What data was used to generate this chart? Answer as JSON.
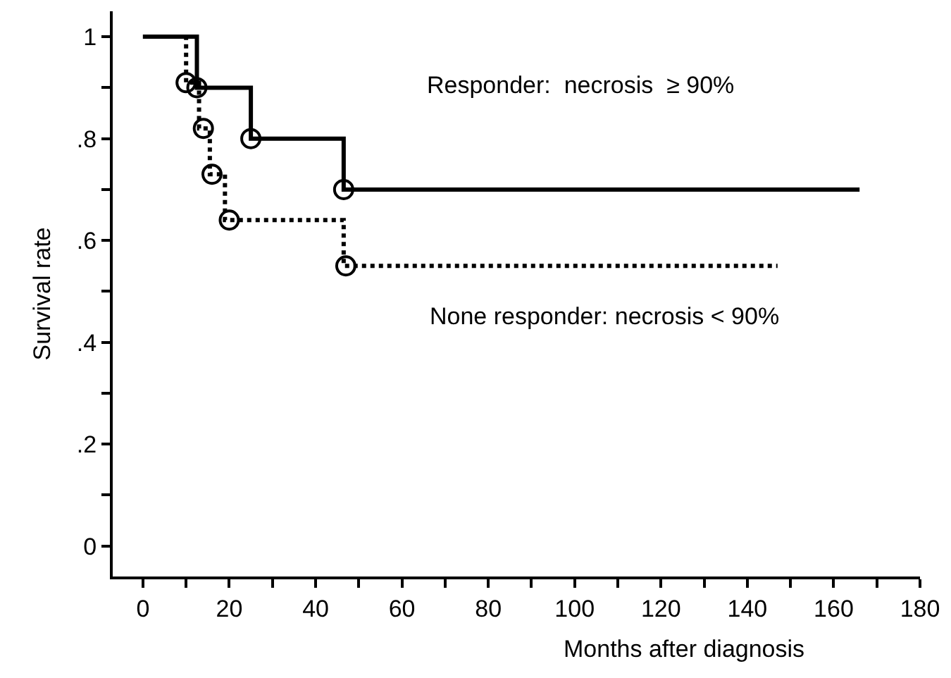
{
  "chart_data": {
    "type": "step",
    "xlabel": "Months after diagnosis",
    "ylabel": "Survival rate",
    "series": [
      {
        "color": "#000000",
        "line_style": "solid",
        "marker": "none",
        "x": [
          0,
          12.5,
          25,
          46.5,
          166
        ],
        "values": [
          1,
          0.9,
          0.8,
          0.7,
          0.7
        ]
      },
      {
        "color": "#000000",
        "line_style": "dotted",
        "marker": "none",
        "x": [
          0,
          10,
          13,
          15.5,
          19,
          46.5,
          147
        ],
        "values": [
          1,
          0.91,
          0.82,
          0.73,
          0.64,
          0.55,
          0.55
        ]
      },
      {
        "type": "scatter",
        "color": "#000000",
        "marker": "circle",
        "x": [
          12.5,
          25,
          46.5
        ],
        "values": [
          0.9,
          0.8,
          0.7
        ]
      },
      {
        "type": "scatter",
        "color": "#000000",
        "marker": "circle",
        "x": [
          10,
          14,
          16,
          20,
          47
        ],
        "values": [
          0.91,
          0.82,
          0.73,
          0.64,
          0.55
        ]
      }
    ],
    "annotations": [
      "Responder:  necrosis  ≥ 90%",
      "None responder: necrosis < 90%"
    ],
    "xlim": [
      -7,
      180
    ],
    "ylim": [
      -0.06,
      1.05
    ],
    "xticks": [
      0,
      {
        "value": 10,
        "label": null
      },
      20,
      {
        "value": 30,
        "label": null
      },
      40,
      {
        "value": 50,
        "label": null
      },
      60,
      {
        "value": 70,
        "label": null
      },
      80,
      {
        "value": 90,
        "label": null
      },
      100,
      {
        "value": 110,
        "label": null
      },
      120,
      {
        "value": 130,
        "label": null
      },
      140,
      {
        "value": 150,
        "label": null
      },
      160,
      {
        "value": 170,
        "label": null
      },
      180
    ],
    "yticks": [
      {
        "value": 0,
        "label": "0"
      },
      {
        "value": 0.1,
        "label": null
      },
      {
        "value": 0.2,
        "label": ".2"
      },
      {
        "value": 0.3,
        "label": null
      },
      {
        "value": 0.4,
        "label": ".4"
      },
      {
        "value": 0.5,
        "label": null
      },
      {
        "value": 0.6,
        "label": ".6"
      },
      {
        "value": 0.7,
        "label": null
      },
      {
        "value": 0.8,
        "label": ".8"
      },
      {
        "value": 0.9,
        "label": null
      },
      {
        "value": 1,
        "label": "1"
      }
    ]
  }
}
